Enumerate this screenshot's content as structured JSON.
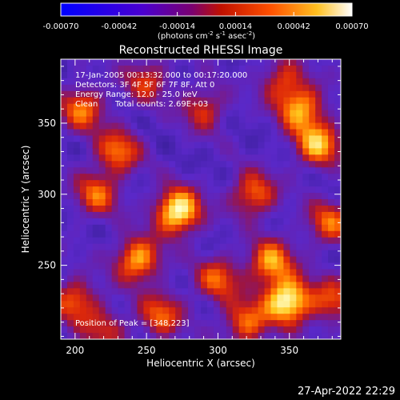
{
  "chart_data": {
    "type": "heatmap",
    "title": "Reconstructed RHESSI Image",
    "xlabel": "Heliocentric X (arcsec)",
    "ylabel": "Heliocentric Y (arcsec)",
    "xlim": [
      190,
      386
    ],
    "ylim": [
      198,
      395
    ],
    "xticks": [
      200,
      250,
      300,
      350
    ],
    "yticks": [
      250,
      300,
      350
    ],
    "colorbar": {
      "ticks": [
        "-0.00070",
        "-0.00042",
        "-0.00014",
        "0.00014",
        "0.00042",
        "0.00070"
      ],
      "unit_main": "(photons cm",
      "unit_sup1": "-2",
      "unit_mid": " s",
      "unit_sup2": "-1",
      "unit_mid2": " asec",
      "unit_sup3": "-2",
      "unit_end": ")",
      "range": [
        -0.0007,
        0.0007
      ]
    },
    "annotations": {
      "time_range": "17-Jan-2005 00:13:32.000 to 00:17:20.000",
      "detectors": "Detectors: 3F 4F 5F 6F 7F 8F, Att 0",
      "energy": "Energy Range: 12.0 - 25.0 keV",
      "clean": "Clean",
      "counts": "Total counts: 2.69E+03",
      "peak": "Position of Peak = [348,223]"
    },
    "peak": [
      348,
      223
    ],
    "blobs": [
      {
        "x": 272,
        "y": 288,
        "amp": 1.0
      },
      {
        "x": 349,
        "y": 225,
        "amp": 1.0
      },
      {
        "x": 244,
        "y": 254,
        "amp": 0.75
      },
      {
        "x": 337,
        "y": 252,
        "amp": 0.7
      },
      {
        "x": 325,
        "y": 300,
        "amp": 0.6
      },
      {
        "x": 370,
        "y": 335,
        "amp": 0.75
      },
      {
        "x": 358,
        "y": 360,
        "amp": 0.7
      },
      {
        "x": 230,
        "y": 330,
        "amp": 0.6
      },
      {
        "x": 205,
        "y": 360,
        "amp": 0.6
      },
      {
        "x": 215,
        "y": 300,
        "amp": 0.55
      },
      {
        "x": 200,
        "y": 225,
        "amp": 0.55
      },
      {
        "x": 300,
        "y": 240,
        "amp": 0.55
      },
      {
        "x": 320,
        "y": 210,
        "amp": 0.6
      },
      {
        "x": 378,
        "y": 280,
        "amp": 0.55
      },
      {
        "x": 290,
        "y": 360,
        "amp": 0.45
      },
      {
        "x": 260,
        "y": 215,
        "amp": 0.55
      },
      {
        "x": 220,
        "y": 205,
        "amp": 0.4
      },
      {
        "x": 380,
        "y": 225,
        "amp": 0.5
      },
      {
        "x": 250,
        "y": 380,
        "amp": 0.45
      },
      {
        "x": 345,
        "y": 380,
        "amp": 0.45
      }
    ]
  },
  "footer": {
    "timestamp": "27-Apr-2022 22:29"
  }
}
